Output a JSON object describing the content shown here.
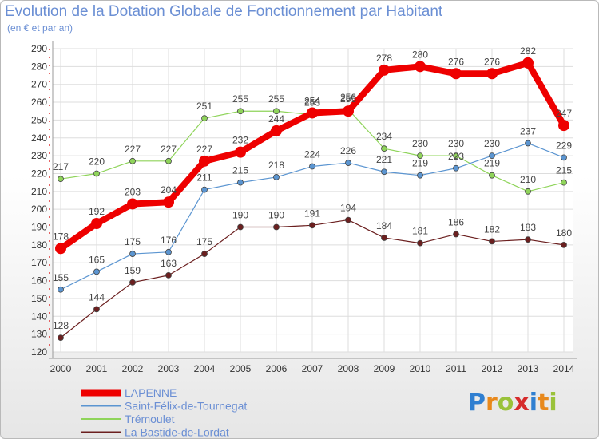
{
  "title": "Evolution de la Dotation Globale de Fonctionnement par Habitant",
  "subtitle": "(en € et par an)",
  "logo": {
    "letters": [
      "P",
      "r",
      "o",
      "x",
      "i",
      "t",
      "i"
    ],
    "colors": [
      "#2f7fd1",
      "#e8891c",
      "#9ac23a",
      "#d62b2b",
      "#2f7fd1",
      "#e8891c",
      "#9ac23a"
    ]
  },
  "chart_data": {
    "type": "line",
    "x": [
      "2000",
      "2001",
      "2002",
      "2003",
      "2004",
      "2005",
      "2006",
      "2007",
      "2008",
      "2009",
      "2010",
      "2011",
      "2012",
      "2013",
      "2014"
    ],
    "ylim": [
      120,
      290
    ],
    "yticks": [
      120,
      130,
      140,
      150,
      160,
      170,
      180,
      190,
      200,
      210,
      220,
      230,
      240,
      250,
      260,
      270,
      280,
      290
    ],
    "grid": true,
    "legend_position": "bottom-left",
    "series": [
      {
        "name": "La Bastide-de-Lordat",
        "color": "#6b1f1f",
        "width": 1.2,
        "values": [
          128,
          144,
          159,
          163,
          175,
          190,
          190,
          191,
          194,
          184,
          181,
          186,
          182,
          183,
          180
        ]
      },
      {
        "name": "Trémoulet",
        "color": "#8fd45a",
        "width": 1.2,
        "values": [
          217,
          220,
          227,
          227,
          251,
          255,
          255,
          253,
          256,
          234,
          230,
          230,
          219,
          210,
          215
        ]
      },
      {
        "name": "Saint-Félix-de-Tournegat",
        "color": "#5b95d1",
        "width": 1.2,
        "values": [
          155,
          165,
          175,
          176,
          211,
          215,
          218,
          224,
          226,
          221,
          219,
          223,
          230,
          237,
          229
        ]
      },
      {
        "name": "LAPENNE",
        "color": "#ee0000",
        "width": 8,
        "values": [
          178,
          192,
          203,
          204,
          227,
          232,
          244,
          254,
          255,
          278,
          280,
          276,
          276,
          282,
          247
        ]
      }
    ]
  }
}
